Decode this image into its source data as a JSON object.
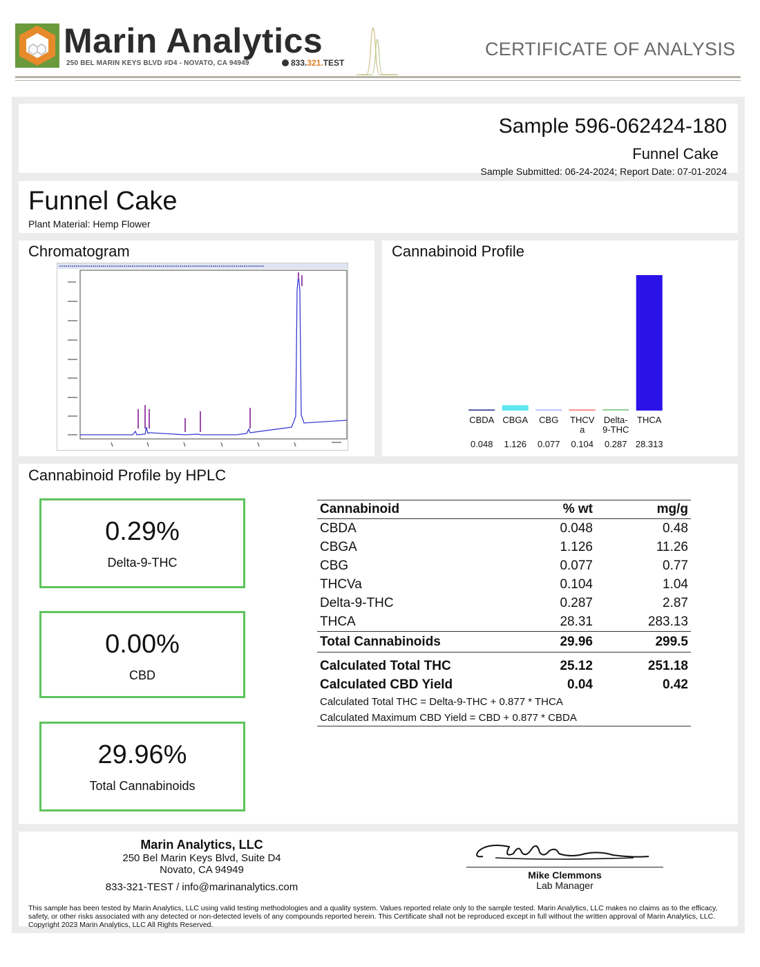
{
  "header": {
    "brand_name": "Marin Analytics",
    "address": "250 BEL MARIN KEYS BLVD #D4 - NOVATO, CA 94949",
    "phone_prefix": "833.",
    "phone_accent": "321.",
    "phone_suffix": "TEST",
    "document_title": "CERTIFICATE OF ANALYSIS"
  },
  "sample": {
    "id": "Sample 596-062424-180",
    "name": "Funnel Cake",
    "dates": "Sample Submitted: 06-24-2024;  Report Date: 07-01-2024"
  },
  "product": {
    "name": "Funnel Cake",
    "plant_material": "Plant Material: Hemp Flower"
  },
  "chromatogram": {
    "title": "Chromatogram"
  },
  "profile": {
    "title": "Cannabinoid Profile"
  },
  "chart_data": {
    "type": "bar",
    "title": "Cannabinoid Profile",
    "categories": [
      "CBDA",
      "CBGA",
      "CBG",
      "THCVa",
      "Delta-9-THC",
      "THCA"
    ],
    "category_label_lines": [
      [
        "CBDA"
      ],
      [
        "CBGA"
      ],
      [
        "CBG"
      ],
      [
        "THCV",
        "a"
      ],
      [
        "Delta-",
        "9-THC"
      ],
      [
        "THCA"
      ]
    ],
    "values": [
      0.048,
      1.126,
      0.077,
      0.104,
      0.287,
      28.313
    ],
    "value_labels": [
      "0.048",
      "1.126",
      "0.077",
      "0.104",
      "0.287",
      "28.313"
    ],
    "colors": [
      "#1f2a8c",
      "#5ee6f0",
      "#9fb3ff",
      "#ff6b6b",
      "#8fd08f",
      "#2a12e8"
    ],
    "ylim": [
      0,
      28.313
    ],
    "grid": false
  },
  "hplc": {
    "title": "Cannabinoid Profile by HPLC",
    "summary": [
      {
        "value": "0.29%",
        "label": "Delta-9-THC"
      },
      {
        "value": "0.00%",
        "label": "CBD"
      },
      {
        "value": "29.96%",
        "label": "Total Cannabinoids"
      }
    ],
    "columns": [
      "Cannabinoid",
      "% wt",
      "mg/g"
    ],
    "rows": [
      {
        "name": "CBDA",
        "wt": "0.048",
        "mg": "0.48"
      },
      {
        "name": "CBGA",
        "wt": "1.126",
        "mg": "11.26"
      },
      {
        "name": "CBG",
        "wt": "0.077",
        "mg": "0.77"
      },
      {
        "name": "THCVa",
        "wt": "0.104",
        "mg": "1.04"
      },
      {
        "name": "Delta-9-THC",
        "wt": "0.287",
        "mg": "2.87"
      },
      {
        "name": "THCA",
        "wt": "28.31",
        "mg": "283.13"
      }
    ],
    "total": {
      "name": "Total Cannabinoids",
      "wt": "29.96",
      "mg": "299.5"
    },
    "calc_thc": {
      "name": "Calculated Total THC",
      "wt": "25.12",
      "mg": "251.18"
    },
    "calc_cbd": {
      "name": "Calculated CBD Yield",
      "wt": "0.04",
      "mg": "0.42"
    },
    "formula_thc": "Calculated Total THC = Delta-9-THC + 0.877 * THCA",
    "formula_cbd": "Calculated Maximum CBD Yield = CBD + 0.877 * CBDA"
  },
  "footer": {
    "lab_name": "Marin Analytics, LLC",
    "street": "250 Bel Marin Keys Blvd, Suite D4",
    "city": "Novato, CA 94949",
    "contact": "833-321-TEST / info@marinanalytics.com",
    "signer_name": "Mike Clemmons",
    "signer_title": "Lab Manager",
    "disclaimer": "This sample has been tested by Marin Analytics, LLC using valid testing methodologies and a quality system.  Values reported relate only to the sample tested.  Marin Analytics, LLC makes no claims as to the efficacy, safety, or other risks associated with any detected or non-detected levels of any compounds reported herein.  This Certificate shall not be reproduced except in full without the written approval of Marin Analytics, LLC.      Copyright 2023 Marin Analytics, LLC All Rights Reserved."
  }
}
